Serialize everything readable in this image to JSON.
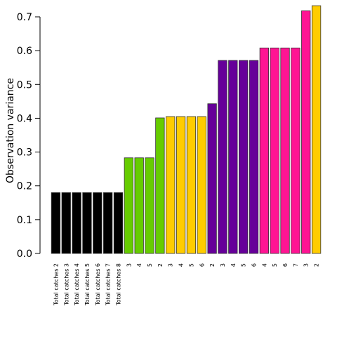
{
  "chart_data": {
    "type": "bar",
    "title": "",
    "xlabel": "",
    "ylabel": "Observation variance",
    "ylim": [
      0,
      0.7
    ],
    "yticks": [
      0.0,
      0.1,
      0.2,
      0.3,
      0.4,
      0.5,
      0.6,
      0.7
    ],
    "ytick_labels": [
      "0.0",
      "0.1",
      "0.2",
      "0.3",
      "0.4",
      "0.5",
      "0.6",
      "0.7"
    ],
    "grid": false,
    "legend": "none",
    "categories": [
      "Total catches 2",
      "Total catches 3",
      "Total catches 4",
      "Total catches 5",
      "Total catches 6",
      "Total catches 7",
      "Total catches 8",
      "3",
      "4",
      "5",
      "2",
      "3",
      "4",
      "5",
      "6",
      "2",
      "3",
      "4",
      "5",
      "6",
      "4",
      "5",
      "6",
      "7",
      "3",
      "2"
    ],
    "values": [
      0.18,
      0.18,
      0.18,
      0.18,
      0.18,
      0.18,
      0.18,
      0.283,
      0.283,
      0.283,
      0.401,
      0.405,
      0.405,
      0.405,
      0.405,
      0.443,
      0.571,
      0.571,
      0.571,
      0.571,
      0.608,
      0.608,
      0.608,
      0.608,
      0.718,
      0.733
    ],
    "colors": [
      "#000000",
      "#000000",
      "#000000",
      "#000000",
      "#000000",
      "#000000",
      "#000000",
      "#66cc00",
      "#66cc00",
      "#66cc00",
      "#66cc00",
      "#ffcc00",
      "#ffcc00",
      "#ffcc00",
      "#ffcc00",
      "#660099",
      "#660099",
      "#660099",
      "#660099",
      "#660099",
      "#ff1493",
      "#ff1493",
      "#ff1493",
      "#ff1493",
      "#ff1493",
      "#ffcc00"
    ]
  }
}
